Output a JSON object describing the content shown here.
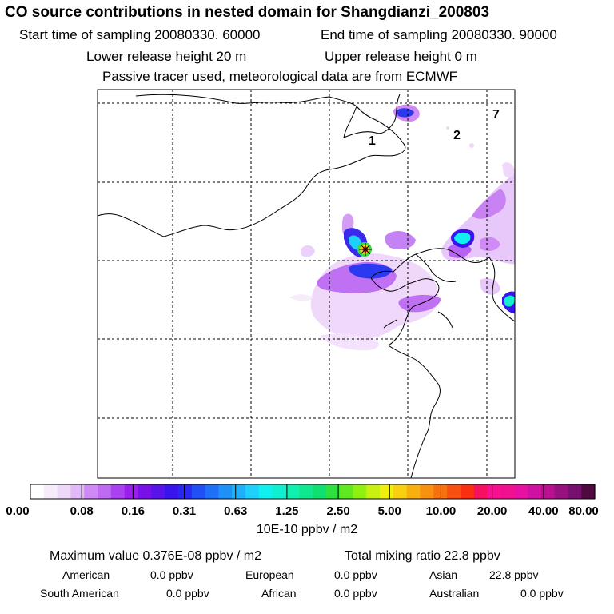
{
  "header": {
    "title": "CO  source contributions in nested domain for Shangdianzi_200803",
    "start_sampling": "Start time of sampling 20080330. 60000",
    "end_sampling": "End time of sampling 20080330. 90000",
    "lower_release": "Lower release height   20 m",
    "upper_release": "Upper release height    0 m",
    "tracer_note": "Passive tracer used, meteorological data are from ECMWF"
  },
  "map": {
    "labels": [
      "1",
      "2",
      "7"
    ],
    "station_marker": "receptor-star-icon"
  },
  "colorbar": {
    "ticks": [
      "0.00",
      "0.08",
      "0.16",
      "0.31",
      "0.63",
      "1.25",
      "2.50",
      "5.00",
      "10.00",
      "20.00",
      "40.00",
      "80.00"
    ],
    "colors": [
      "#ffffff",
      "#f6ecfc",
      "#edd8fa",
      "#e2b9f8",
      "#cf8af5",
      "#bf6af2",
      "#aa40ef",
      "#9a1fec",
      "#7a10e8",
      "#5a12ea",
      "#3a14ee",
      "#2828f2",
      "#1f4ff5",
      "#1f70f7",
      "#1f90f8",
      "#1fb0fa",
      "#1fd0fb",
      "#10f0f0",
      "#10f0d0",
      "#10f0b0",
      "#10e890",
      "#10e070",
      "#30e040",
      "#60e820",
      "#90f010",
      "#c8f010",
      "#f0f010",
      "#f8d010",
      "#f8b010",
      "#f89010",
      "#f87010",
      "#f85010",
      "#f83010",
      "#f81060",
      "#f81090",
      "#f01090",
      "#e810a0",
      "#d010a0",
      "#b81090",
      "#981080",
      "#781070",
      "#500840"
    ],
    "units": "10E-10 ppbv / m2"
  },
  "footer": {
    "max_value": "Maximum value  0.376E-08 ppbv / m2",
    "total_mixing": "Total mixing ratio       22.8 ppbv",
    "contributions": [
      {
        "name": "American",
        "value": "0.0 ppbv"
      },
      {
        "name": "European",
        "value": "0.0 ppbv"
      },
      {
        "name": "Asian",
        "value": "22.8 ppbv"
      },
      {
        "name": "South American",
        "value": "0.0 ppbv"
      },
      {
        "name": "African",
        "value": "0.0 ppbv"
      },
      {
        "name": "Australian",
        "value": "0.0 ppbv"
      }
    ]
  }
}
